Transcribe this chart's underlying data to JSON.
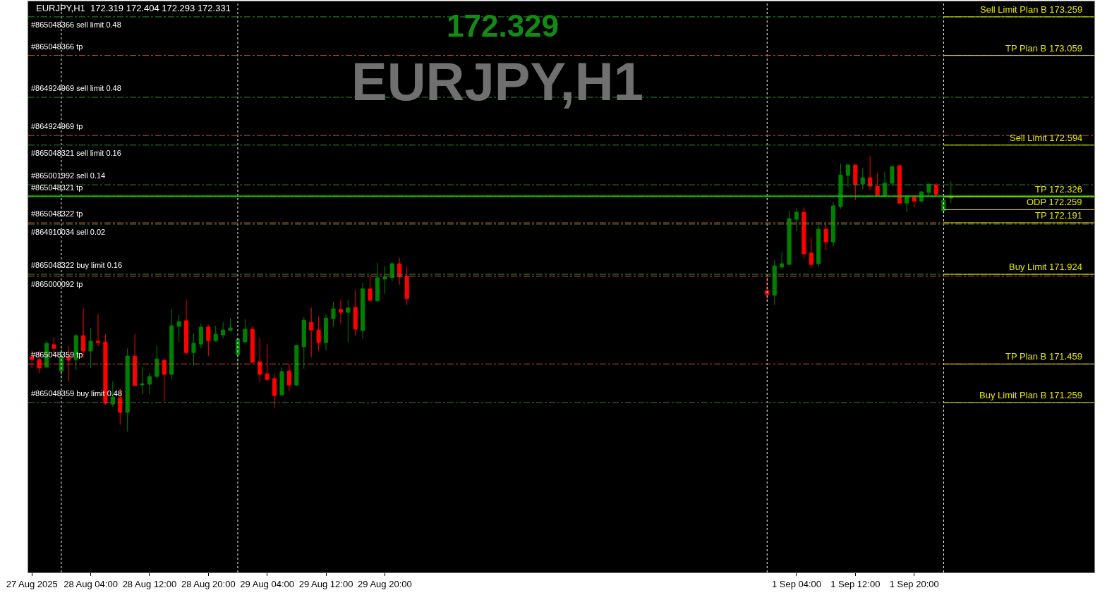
{
  "chart_data": {
    "type": "candlestick",
    "title": "EURJPY,H1",
    "subtitle": "172.329",
    "annotations": [
      "EURJPY,H1  172.319 172.404 172.293 172.331"
    ],
    "colors": [
      "#ff0000",
      "#ff0000",
      "#008000",
      "#ff0000",
      "#008000",
      "#ff0000",
      "#008000",
      "#ff0000",
      "#008000",
      "#ff0000",
      "#ff0000",
      "#008000",
      "#ff0000",
      "#008000",
      "#ff0000",
      "#008000",
      "#008000",
      "#008000",
      "#ff0000",
      "#008000",
      "#008000",
      "#ff0000",
      "#008000",
      "#008000",
      "#ff0000",
      "#008000",
      "#008000",
      "#008000",
      "#008000",
      "#008000",
      "#ff0000",
      "#ff0000",
      "#ff0000",
      "#ff0000",
      "#008000",
      "#ff0000",
      "#008000",
      "#008000",
      "#ff0000",
      "#ff0000",
      "#008000",
      "#008000",
      "#ff0000",
      "#008000",
      "#ff0000",
      "#008000",
      "#ff0000",
      "#008000",
      "#008000",
      "#008000",
      "#ff0000",
      "#ff0000",
      "#ff0000",
      "#008000",
      "#008000",
      "#008000",
      "#008000",
      "#ff0000",
      "#ff0000",
      "#008000",
      "#ff0000",
      "#008000",
      "#008000",
      "#008000",
      "#ff0000",
      "#008000",
      "#ff0000",
      "#ff0000",
      "#008000",
      "#008000",
      "#ff0000",
      "#008000",
      "#ff0000",
      "#008000",
      "#008000",
      "#ff0000",
      "#008000",
      "#008000"
    ],
    "x": [
      "2025-08-27T20:00",
      "2025-08-27T21:00",
      "2025-08-27T22:00",
      "2025-08-27T23:00",
      "2025-08-28T00:00",
      "2025-08-28T01:00",
      "2025-08-28T02:00",
      "2025-08-28T03:00",
      "2025-08-28T04:00",
      "2025-08-28T05:00",
      "2025-08-28T06:00",
      "2025-08-28T07:00",
      "2025-08-28T08:00",
      "2025-08-28T09:00",
      "2025-08-28T10:00",
      "2025-08-28T11:00",
      "2025-08-28T12:00",
      "2025-08-28T13:00",
      "2025-08-28T14:00",
      "2025-08-28T15:00",
      "2025-08-28T16:00",
      "2025-08-28T17:00",
      "2025-08-28T18:00",
      "2025-08-28T19:00",
      "2025-08-28T20:00",
      "2025-08-28T21:00",
      "2025-08-28T22:00",
      "2025-08-28T23:00",
      "2025-08-29T00:00",
      "2025-08-29T01:00",
      "2025-08-29T02:00",
      "2025-08-29T03:00",
      "2025-08-29T04:00",
      "2025-08-29T05:00",
      "2025-08-29T06:00",
      "2025-08-29T07:00",
      "2025-08-29T08:00",
      "2025-08-29T09:00",
      "2025-08-29T10:00",
      "2025-08-29T11:00",
      "2025-08-29T12:00",
      "2025-08-29T13:00",
      "2025-08-29T14:00",
      "2025-08-29T15:00",
      "2025-08-29T16:00",
      "2025-08-29T17:00",
      "2025-08-29T18:00",
      "2025-08-29T19:00",
      "2025-08-29T20:00",
      "2025-08-29T21:00",
      "2025-08-29T22:00",
      "2025-08-29T23:00",
      "2025-09-01T00:00",
      "2025-09-01T01:00",
      "2025-09-01T02:00",
      "2025-09-01T03:00",
      "2025-09-01T04:00",
      "2025-09-01T05:00",
      "2025-09-01T06:00",
      "2025-09-01T07:00",
      "2025-09-01T08:00",
      "2025-09-01T09:00",
      "2025-09-01T10:00",
      "2025-09-01T11:00",
      "2025-09-01T12:00",
      "2025-09-01T13:00",
      "2025-09-01T14:00",
      "2025-09-01T15:00",
      "2025-09-01T16:00",
      "2025-09-01T17:00",
      "2025-09-01T18:00",
      "2025-09-01T19:00",
      "2025-09-01T20:00",
      "2025-09-01T21:00",
      "2025-09-01T22:00",
      "2025-09-01T23:00",
      "2025-09-02T00:00",
      "2025-09-02T01:00"
    ],
    "ohlc": [
      [
        171.496,
        171.529,
        171.438,
        171.482
      ],
      [
        171.482,
        171.529,
        171.412,
        171.438
      ],
      [
        171.442,
        171.577,
        171.442,
        171.566
      ],
      [
        171.559,
        171.599,
        171.5,
        171.54
      ],
      [
        171.423,
        171.544,
        171.376,
        171.496
      ],
      [
        171.496,
        171.551,
        171.368,
        171.478
      ],
      [
        171.482,
        171.613,
        171.427,
        171.606
      ],
      [
        171.606,
        171.749,
        171.493,
        171.526
      ],
      [
        171.526,
        171.646,
        171.438,
        171.577
      ],
      [
        171.577,
        171.716,
        171.551,
        171.57
      ],
      [
        171.573,
        171.613,
        171.248,
        171.255
      ],
      [
        171.251,
        171.368,
        171.237,
        171.288
      ],
      [
        171.284,
        171.331,
        171.145,
        171.208
      ],
      [
        171.208,
        171.54,
        171.108,
        171.5
      ],
      [
        171.5,
        171.613,
        171.347,
        171.347
      ],
      [
        171.35,
        171.442,
        171.303,
        171.357
      ],
      [
        171.354,
        171.412,
        171.303,
        171.394
      ],
      [
        171.394,
        171.551,
        171.383,
        171.485
      ],
      [
        171.478,
        171.489,
        171.259,
        171.405
      ],
      [
        171.405,
        171.741,
        171.379,
        171.657
      ],
      [
        171.654,
        171.712,
        171.573,
        171.679
      ],
      [
        171.683,
        171.789,
        171.504,
        171.518
      ],
      [
        171.518,
        171.617,
        171.449,
        171.566
      ],
      [
        171.562,
        171.668,
        171.54,
        171.65
      ],
      [
        171.65,
        171.661,
        171.5,
        171.58
      ],
      [
        171.58,
        171.657,
        171.573,
        171.613
      ],
      [
        171.61,
        171.675,
        171.591,
        171.635
      ],
      [
        171.632,
        171.697,
        171.632,
        171.646
      ],
      [
        171.507,
        171.588,
        171.438,
        171.588
      ],
      [
        171.573,
        171.69,
        171.573,
        171.639
      ],
      [
        171.639,
        171.654,
        171.464,
        171.467
      ],
      [
        171.471,
        171.595,
        171.365,
        171.405
      ],
      [
        171.408,
        171.562,
        171.372,
        171.379
      ],
      [
        171.383,
        171.405,
        171.23,
        171.295
      ],
      [
        171.299,
        171.442,
        171.292,
        171.419
      ],
      [
        171.423,
        171.46,
        171.318,
        171.35
      ],
      [
        171.35,
        171.559,
        171.343,
        171.555
      ],
      [
        171.548,
        171.701,
        171.434,
        171.686
      ],
      [
        171.675,
        171.752,
        171.493,
        171.635
      ],
      [
        171.635,
        171.705,
        171.526,
        171.57
      ],
      [
        171.57,
        171.716,
        171.529,
        171.697
      ],
      [
        171.694,
        171.782,
        171.65,
        171.745
      ],
      [
        171.742,
        171.793,
        171.669,
        171.727
      ],
      [
        171.727,
        171.789,
        171.57,
        171.749
      ],
      [
        171.753,
        171.84,
        171.606,
        171.639
      ],
      [
        171.632,
        171.881,
        171.591,
        171.848
      ],
      [
        171.848,
        171.921,
        171.786,
        171.789
      ],
      [
        171.786,
        171.983,
        171.786,
        171.906
      ],
      [
        171.899,
        171.968,
        171.822,
        171.91
      ],
      [
        171.906,
        171.987,
        171.888,
        171.979
      ],
      [
        171.979,
        172.009,
        171.87,
        171.91
      ],
      [
        171.914,
        171.965,
        171.764,
        171.797
      ],
      [
        171.84,
        171.917,
        171.782,
        171.819
      ],
      [
        171.815,
        171.998,
        171.764,
        171.968
      ],
      [
        171.961,
        172.038,
        171.95,
        171.979
      ],
      [
        171.975,
        172.253,
        171.975,
        172.213
      ],
      [
        172.209,
        172.268,
        172.147,
        172.246
      ],
      [
        172.246,
        172.271,
        172.008,
        172.03
      ],
      [
        172.034,
        172.114,
        171.957,
        171.975
      ],
      [
        171.979,
        172.176,
        171.961,
        172.158
      ],
      [
        172.158,
        172.187,
        172.048,
        172.092
      ],
      [
        172.092,
        172.297,
        172.067,
        172.279
      ],
      [
        172.275,
        172.498,
        172.264,
        172.439
      ],
      [
        172.436,
        172.498,
        172.377,
        172.491
      ],
      [
        172.491,
        172.491,
        172.308,
        172.388
      ],
      [
        172.392,
        172.476,
        172.363,
        172.425
      ],
      [
        172.425,
        172.538,
        172.359,
        172.381
      ],
      [
        172.381,
        172.45,
        172.33,
        172.33
      ],
      [
        172.33,
        172.454,
        172.33,
        172.396
      ],
      [
        172.396,
        172.487,
        172.381,
        172.483
      ],
      [
        172.487,
        172.494,
        172.293,
        172.293
      ],
      [
        172.293,
        172.33,
        172.246,
        172.33
      ],
      [
        172.33,
        172.333,
        172.271,
        172.304
      ],
      [
        172.304,
        172.355,
        172.293,
        172.352
      ],
      [
        172.348,
        172.392,
        172.33,
        172.392
      ],
      [
        172.388,
        172.396,
        172.337,
        172.337
      ],
      [
        172.253,
        172.337,
        172.235,
        172.308
      ],
      [
        172.319,
        172.404,
        172.293,
        172.331
      ]
    ],
    "xlim": [
      "2025-08-27T19:30",
      "2025-09-02T20:30"
    ],
    "xticks": [
      {
        "value": "2025-08-27T20:00",
        "label": "27 Aug 2025"
      },
      {
        "value": "2025-08-28T04:00",
        "label": "28 Aug 04:00"
      },
      {
        "value": "2025-08-28T12:00",
        "label": "28 Aug 12:00"
      },
      {
        "value": "2025-08-28T20:00",
        "label": "28 Aug 20:00"
      },
      {
        "value": "2025-08-29T04:00",
        "label": "29 Aug 04:00"
      },
      {
        "value": "2025-08-29T12:00",
        "label": "29 Aug 12:00"
      },
      {
        "value": "2025-08-29T20:00",
        "label": "29 Aug 20:00"
      },
      {
        "value": "2025-09-01T04:00",
        "label": "1 Sep 04:00"
      },
      {
        "value": "2025-09-01T12:00",
        "label": "1 Sep 12:00"
      },
      {
        "value": "2025-09-01T20:00",
        "label": "1 Sep 20:00"
      }
    ],
    "ylim": [
      170.378,
      173.339
    ],
    "tick_labels": "x",
    "ref_lines": [
      {
        "axis": "x",
        "value": "2025-08-28T00:00",
        "color": "#ffffff",
        "line_style": "dotted"
      },
      {
        "axis": "x",
        "value": "2025-08-29T00:00",
        "color": "#ffffff",
        "line_style": "dotted"
      },
      {
        "axis": "x",
        "value": "2025-09-01T00:00",
        "color": "#ffffff",
        "line_style": "dotted"
      },
      {
        "axis": "x",
        "value": "2025-09-02T00:00",
        "color": "#ffffff",
        "line_style": "dotted"
      },
      {
        "axis": "y",
        "value": 173.259,
        "label": "#865048366 sell limit 0.48",
        "color": "#2e8b2e",
        "line_style": "dashed"
      },
      {
        "axis": "y",
        "value": 173.059,
        "label": "#865048366 tp",
        "color": "#c8502a",
        "line_style": "dashed"
      },
      {
        "axis": "y",
        "value": 172.842,
        "label": "#864924969 sell limit 0.48",
        "color": "#2e8b2e",
        "line_style": "dashed"
      },
      {
        "axis": "y",
        "value": 172.644,
        "label": "#864924969 tp",
        "color": "#c8502a",
        "line_style": "dashed"
      },
      {
        "axis": "y",
        "value": 172.594,
        "label": "#865048321 sell limit 0.16",
        "color": "#2e8b2e",
        "line_style": "dashed"
      },
      {
        "axis": "y",
        "value": 172.388,
        "label": "#865001992 sell 0.14",
        "color": "#2e8b2e",
        "line_style": "dashed"
      },
      {
        "axis": "y",
        "value": 172.326,
        "label": "#865048321 tp",
        "color": "#c8502a",
        "line_style": "dashed"
      },
      {
        "axis": "y",
        "value": 172.191,
        "label": "#865048322 tp",
        "color": "#c8502a",
        "line_style": "dashed"
      },
      {
        "axis": "y",
        "value": 172.184,
        "label": "#864910034 sell 0.02",
        "color": "#2e8b2e",
        "line_style": "dashed"
      },
      {
        "axis": "y",
        "value": 171.924,
        "label": "#865048322 buy limit 0.16",
        "color": "#2e8b2e",
        "line_style": "dashed"
      },
      {
        "axis": "y",
        "value": 171.914,
        "label": "#865000092 tp",
        "color": "#c8502a",
        "line_style": "dashed"
      },
      {
        "axis": "y",
        "value": 171.459,
        "label": "#865048359 tp",
        "color": "#c8502a",
        "line_style": "dashed"
      },
      {
        "axis": "y",
        "value": 171.259,
        "label": "#865048359 buy limit 0.48",
        "color": "#2e8b2e",
        "line_style": "dashed"
      },
      {
        "axis": "y",
        "value": 172.329,
        "color": "#00c000",
        "line_style": "solid"
      },
      {
        "axis": "y",
        "value": 173.259,
        "label": "Sell Limit Plan B 173.259",
        "color": "#e6e600",
        "line_style": "solid"
      },
      {
        "axis": "y",
        "value": 173.059,
        "label": "TP Plan B 173.059",
        "color": "#e6e600",
        "line_style": "solid"
      },
      {
        "axis": "y",
        "value": 172.594,
        "label": "Sell Limit 172.594",
        "color": "#e6e600",
        "line_style": "solid"
      },
      {
        "axis": "y",
        "value": 172.326,
        "label": "TP 172.326",
        "color": "#e6e600",
        "line_style": "solid"
      },
      {
        "axis": "y",
        "value": 172.259,
        "label": "ODP 172.259",
        "color": "#e6e600",
        "line_style": "solid"
      },
      {
        "axis": "y",
        "value": 172.191,
        "label": "TP 172.191",
        "color": "#e6e600",
        "line_style": "solid"
      },
      {
        "axis": "y",
        "value": 171.924,
        "label": "Buy Limit 171.924",
        "color": "#e6e600",
        "line_style": "solid"
      },
      {
        "axis": "y",
        "value": 171.459,
        "label": "TP Plan B 171.459",
        "color": "#e6e600",
        "line_style": "solid"
      },
      {
        "axis": "y",
        "value": 171.259,
        "label": "Buy Limit Plan B 171.259",
        "color": "#e6e600",
        "line_style": "solid"
      }
    ],
    "grid": false
  }
}
